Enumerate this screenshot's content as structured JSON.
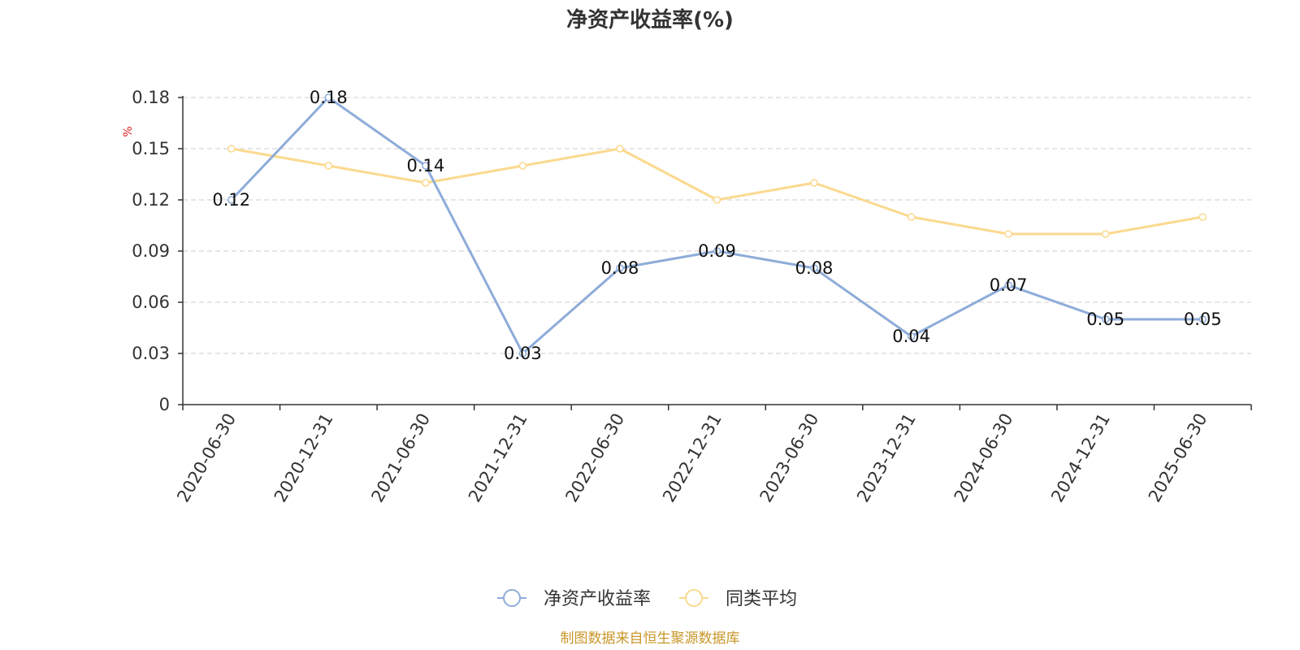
{
  "chart_data": {
    "type": "line",
    "title": "净资产收益率(%)",
    "ylabel": "%",
    "categories": [
      "2020-06-30",
      "2020-12-31",
      "2021-06-30",
      "2021-12-31",
      "2022-06-30",
      "2022-12-31",
      "2023-06-30",
      "2023-12-31",
      "2024-06-30",
      "2024-12-31",
      "2025-06-30"
    ],
    "ylim": [
      0,
      0.18
    ],
    "yticks": [
      "0",
      "0.03",
      "0.06",
      "0.09",
      "0.12",
      "0.15",
      "0.18"
    ],
    "grid": true,
    "legend_position": "bottom-center",
    "series": [
      {
        "name": "净资产收益率",
        "color": "#8eacd9",
        "values": [
          0.12,
          0.18,
          0.14,
          0.03,
          0.08,
          0.09,
          0.08,
          0.04,
          0.07,
          0.05,
          0.05
        ],
        "data_labels": [
          "0.12",
          "0.18",
          "0.14",
          "0.03",
          "0.08",
          "0.09",
          "0.08",
          "0.04",
          "0.07",
          "0.05",
          "0.05"
        ]
      },
      {
        "name": "同类平均",
        "color": "#fbd98f",
        "values": [
          0.15,
          0.14,
          0.13,
          0.14,
          0.15,
          0.12,
          0.13,
          0.11,
          0.1,
          0.1,
          0.11
        ]
      }
    ]
  },
  "footer": {
    "source": "制图数据来自恒生聚源数据库"
  }
}
